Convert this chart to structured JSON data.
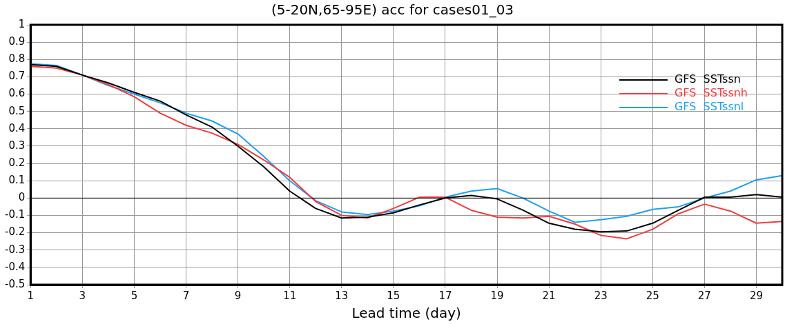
{
  "chart_data": {
    "type": "line",
    "title": "(5-20N,65-95E) acc for cases01_03",
    "xlabel": "Lead time (day)",
    "x": [
      1,
      2,
      3,
      4,
      5,
      6,
      7,
      8,
      9,
      10,
      11,
      12,
      13,
      14,
      15,
      16,
      17,
      18,
      19,
      20,
      21,
      22,
      23,
      24,
      25,
      26,
      27,
      28,
      29,
      30
    ],
    "series": [
      {
        "name": "GFS  SSTssn",
        "color": "#000000",
        "values": [
          0.77,
          0.76,
          0.71,
          0.665,
          0.61,
          0.56,
          0.48,
          0.41,
          0.3,
          0.18,
          0.04,
          -0.06,
          -0.115,
          -0.11,
          -0.085,
          -0.04,
          0,
          0.015,
          -0.005,
          -0.07,
          -0.145,
          -0.18,
          -0.195,
          -0.19,
          -0.145,
          -0.07,
          0.005,
          0.005,
          0.02,
          0.005
        ]
      },
      {
        "name": "GFS  SSTssnh",
        "color": "#f03c3c",
        "values": [
          0.76,
          0.75,
          0.71,
          0.655,
          0.585,
          0.49,
          0.42,
          0.375,
          0.31,
          0.22,
          0.12,
          -0.02,
          -0.1,
          -0.115,
          -0.06,
          0.005,
          0.005,
          -0.07,
          -0.11,
          -0.115,
          -0.105,
          -0.15,
          -0.215,
          -0.235,
          -0.18,
          -0.09,
          -0.035,
          -0.075,
          -0.145,
          -0.135
        ]
      },
      {
        "name": "GFS  SSTssnl",
        "color": "#1ea0f0",
        "values": [
          0.775,
          0.765,
          0.71,
          0.65,
          0.6,
          0.55,
          0.49,
          0.445,
          0.37,
          0.24,
          0.1,
          -0.015,
          -0.08,
          -0.095,
          -0.075,
          -0.045,
          0.005,
          0.04,
          0.055,
          0,
          -0.075,
          -0.14,
          -0.125,
          -0.105,
          -0.065,
          -0.05,
          0,
          0.04,
          0.105,
          0.13
        ]
      }
    ],
    "xlim": [
      1,
      30
    ],
    "xticks": [
      1,
      3,
      5,
      7,
      9,
      11,
      13,
      15,
      17,
      19,
      21,
      23,
      25,
      27,
      29
    ],
    "ylim": [
      -0.5,
      1
    ],
    "yticks": [
      -0.5,
      -0.4,
      -0.3,
      -0.2,
      -0.1,
      0,
      0.1,
      0.2,
      0.3,
      0.4,
      0.5,
      0.6,
      0.7,
      0.8,
      0.9,
      1
    ],
    "ref_lines": [
      {
        "axis": "y",
        "value": 0,
        "color": "#000000"
      }
    ],
    "grid": true,
    "legend": "top right",
    "marker": "none",
    "line_style": "solid"
  }
}
